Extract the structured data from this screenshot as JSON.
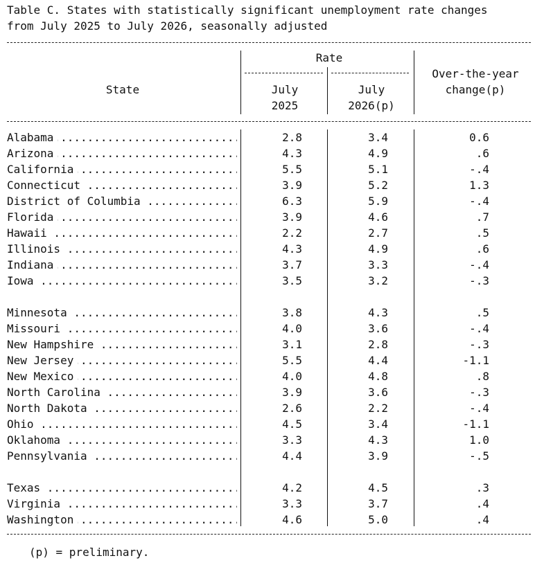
{
  "table": {
    "title_line1": "Table C. States with statistically significant unemployment rate changes",
    "title_line2": "from July 2025 to July 2026, seasonally adjusted",
    "headers": {
      "state": "State",
      "rate": "Rate",
      "col1_line1": "July",
      "col1_line2": "2025",
      "col2_line1": "July",
      "col2_line2": "2026(p)",
      "col3_line1": "Over-the-year",
      "col3_line2": "change(p)"
    },
    "groups": [
      [
        {
          "state": "Alabama",
          "july_2025": "2.8",
          "july_2026": "3.4",
          "change": "0.6"
        },
        {
          "state": "Arizona",
          "july_2025": "4.3",
          "july_2026": "4.9",
          "change": ".6"
        },
        {
          "state": "California",
          "july_2025": "5.5",
          "july_2026": "5.1",
          "change": "-.4"
        },
        {
          "state": "Connecticut",
          "july_2025": "3.9",
          "july_2026": "5.2",
          "change": "1.3"
        },
        {
          "state": "District of Columbia",
          "july_2025": "6.3",
          "july_2026": "5.9",
          "change": "-.4"
        },
        {
          "state": "Florida",
          "july_2025": "3.9",
          "july_2026": "4.6",
          "change": ".7"
        },
        {
          "state": "Hawaii",
          "july_2025": "2.2",
          "july_2026": "2.7",
          "change": ".5"
        },
        {
          "state": "Illinois",
          "july_2025": "4.3",
          "july_2026": "4.9",
          "change": ".6"
        },
        {
          "state": "Indiana",
          "july_2025": "3.7",
          "july_2026": "3.3",
          "change": "-.4"
        },
        {
          "state": "Iowa",
          "july_2025": "3.5",
          "july_2026": "3.2",
          "change": "-.3"
        }
      ],
      [
        {
          "state": "Minnesota",
          "july_2025": "3.8",
          "july_2026": "4.3",
          "change": ".5"
        },
        {
          "state": "Missouri",
          "july_2025": "4.0",
          "july_2026": "3.6",
          "change": "-.4"
        },
        {
          "state": "New Hampshire",
          "july_2025": "3.1",
          "july_2026": "2.8",
          "change": "-.3"
        },
        {
          "state": "New Jersey",
          "july_2025": "5.5",
          "july_2026": "4.4",
          "change": "-1.1"
        },
        {
          "state": "New Mexico",
          "july_2025": "4.0",
          "july_2026": "4.8",
          "change": ".8"
        },
        {
          "state": "North Carolina",
          "july_2025": "3.9",
          "july_2026": "3.6",
          "change": "-.3"
        },
        {
          "state": "North Dakota",
          "july_2025": "2.6",
          "july_2026": "2.2",
          "change": "-.4"
        },
        {
          "state": "Ohio",
          "july_2025": "4.5",
          "july_2026": "3.4",
          "change": "-1.1"
        },
        {
          "state": "Oklahoma",
          "july_2025": "3.3",
          "july_2026": "4.3",
          "change": "1.0"
        },
        {
          "state": "Pennsylvania",
          "july_2025": "4.4",
          "july_2026": "3.9",
          "change": "-.5"
        }
      ],
      [
        {
          "state": "Texas",
          "july_2025": "4.2",
          "july_2026": "4.5",
          "change": ".3"
        },
        {
          "state": "Virginia",
          "july_2025": "3.3",
          "july_2026": "3.7",
          "change": ".4"
        },
        {
          "state": "Washington",
          "july_2025": "4.6",
          "july_2026": "5.0",
          "change": ".4"
        }
      ]
    ],
    "footnote": "(p) = preliminary."
  }
}
